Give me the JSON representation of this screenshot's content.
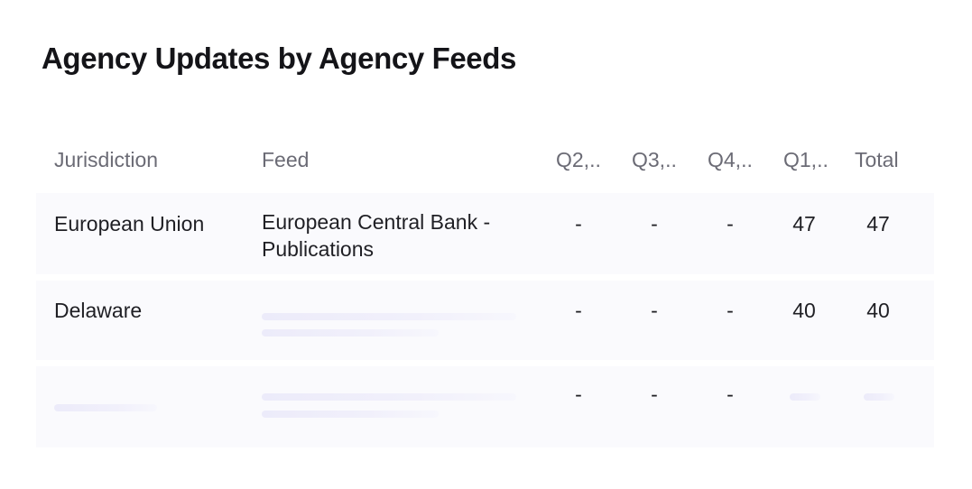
{
  "title": "Agency Updates by Agency Feeds",
  "table": {
    "columns": [
      "Jurisdiction",
      "Feed",
      "Q2,..",
      "Q3,..",
      "Q4,..",
      "Q1,..",
      "Total"
    ],
    "rows": [
      {
        "jurisdiction": "European Union",
        "feed": "European Central Bank - Publications",
        "q2": "-",
        "q3": "-",
        "q4": "-",
        "q1": "47",
        "total": "47"
      },
      {
        "jurisdiction": "Delaware",
        "feed": "",
        "q2": "-",
        "q3": "-",
        "q4": "-",
        "q1": "40",
        "total": "40"
      },
      {
        "jurisdiction": "",
        "feed": "",
        "q2": "-",
        "q3": "-",
        "q4": "-",
        "q1": "",
        "total": ""
      }
    ]
  }
}
